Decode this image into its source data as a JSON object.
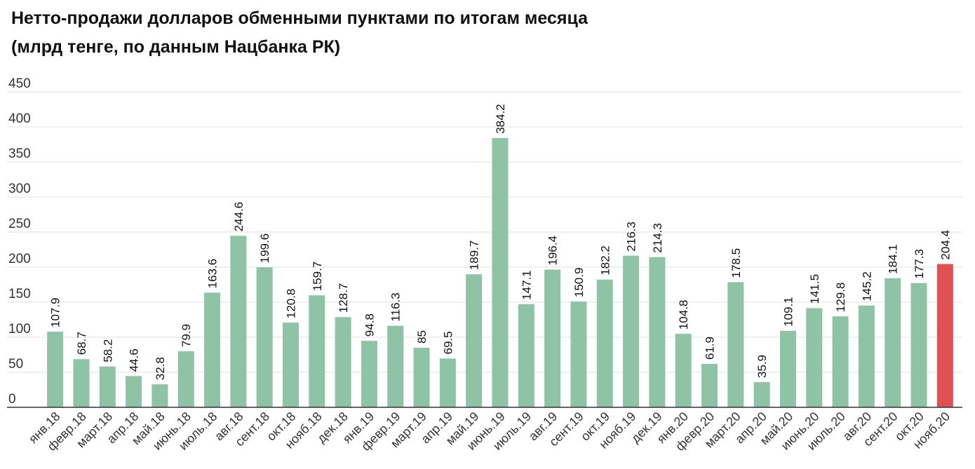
{
  "title_line1": "Нетто-продажи долларов обменными пунктами по итогам месяца",
  "title_line2": "(млрд тенге, по данным Нацбанка РК)",
  "chart_data": {
    "type": "bar",
    "title": "Нетто-продажи долларов обменными пунктами по итогам месяца (млрд тенге, по данным Нацбанка РК)",
    "xlabel": "",
    "ylabel": "",
    "ylim": [
      0,
      450
    ],
    "yticks": [
      0,
      50,
      100,
      150,
      200,
      250,
      300,
      350,
      400,
      450
    ],
    "grid": true,
    "legend": "none",
    "categories": [
      "янв.18",
      "февр.18",
      "март.18",
      "апр.18",
      "май.18",
      "июнь.18",
      "июль.18",
      "авг.18",
      "сент.18",
      "окт.18",
      "нояб.18",
      "дек.18",
      "янв.19",
      "февр.19",
      "март.19",
      "апр.19",
      "май.19",
      "июнь.19",
      "июль.19",
      "авг.19",
      "сент.19",
      "окт.19",
      "нояб.19",
      "дек.19",
      "янв.20",
      "февр.20",
      "март.20",
      "апр.20",
      "май.20",
      "июнь.20",
      "июль.20",
      "авг.20",
      "сент.20",
      "окт.20",
      "нояб.20"
    ],
    "values": [
      107.9,
      68.7,
      58.2,
      44.6,
      32.8,
      79.9,
      163.6,
      244.6,
      199.6,
      120.8,
      159.7,
      128.7,
      94.8,
      116.3,
      85,
      69.5,
      189.7,
      384.2,
      147.1,
      196.4,
      150.9,
      182.2,
      216.3,
      214.3,
      104.8,
      61.9,
      178.5,
      35.9,
      109.1,
      141.5,
      129.8,
      145.2,
      184.1,
      177.3,
      204.4
    ],
    "value_labels": [
      "107.9",
      "68.7",
      "58.2",
      "44.6",
      "32.8",
      "79.9",
      "163.6",
      "244.6",
      "199.6",
      "120.8",
      "159.7",
      "128.7",
      "94.8",
      "116.3",
      "85",
      "69.5",
      "189.7",
      "384.2",
      "147.1",
      "196.4",
      "150.9",
      "182.2",
      "216.3",
      "214.3",
      "104.8",
      "61.9",
      "178.5",
      "35.9",
      "109.1",
      "141.5",
      "129.8",
      "145.2",
      "184.1",
      "177.3",
      "204.4"
    ],
    "colors": {
      "bar": "#8ec3a5",
      "highlight": "#e05252",
      "grid": "#e2e2e2",
      "axis": "#333333"
    },
    "highlight_index": 34
  }
}
